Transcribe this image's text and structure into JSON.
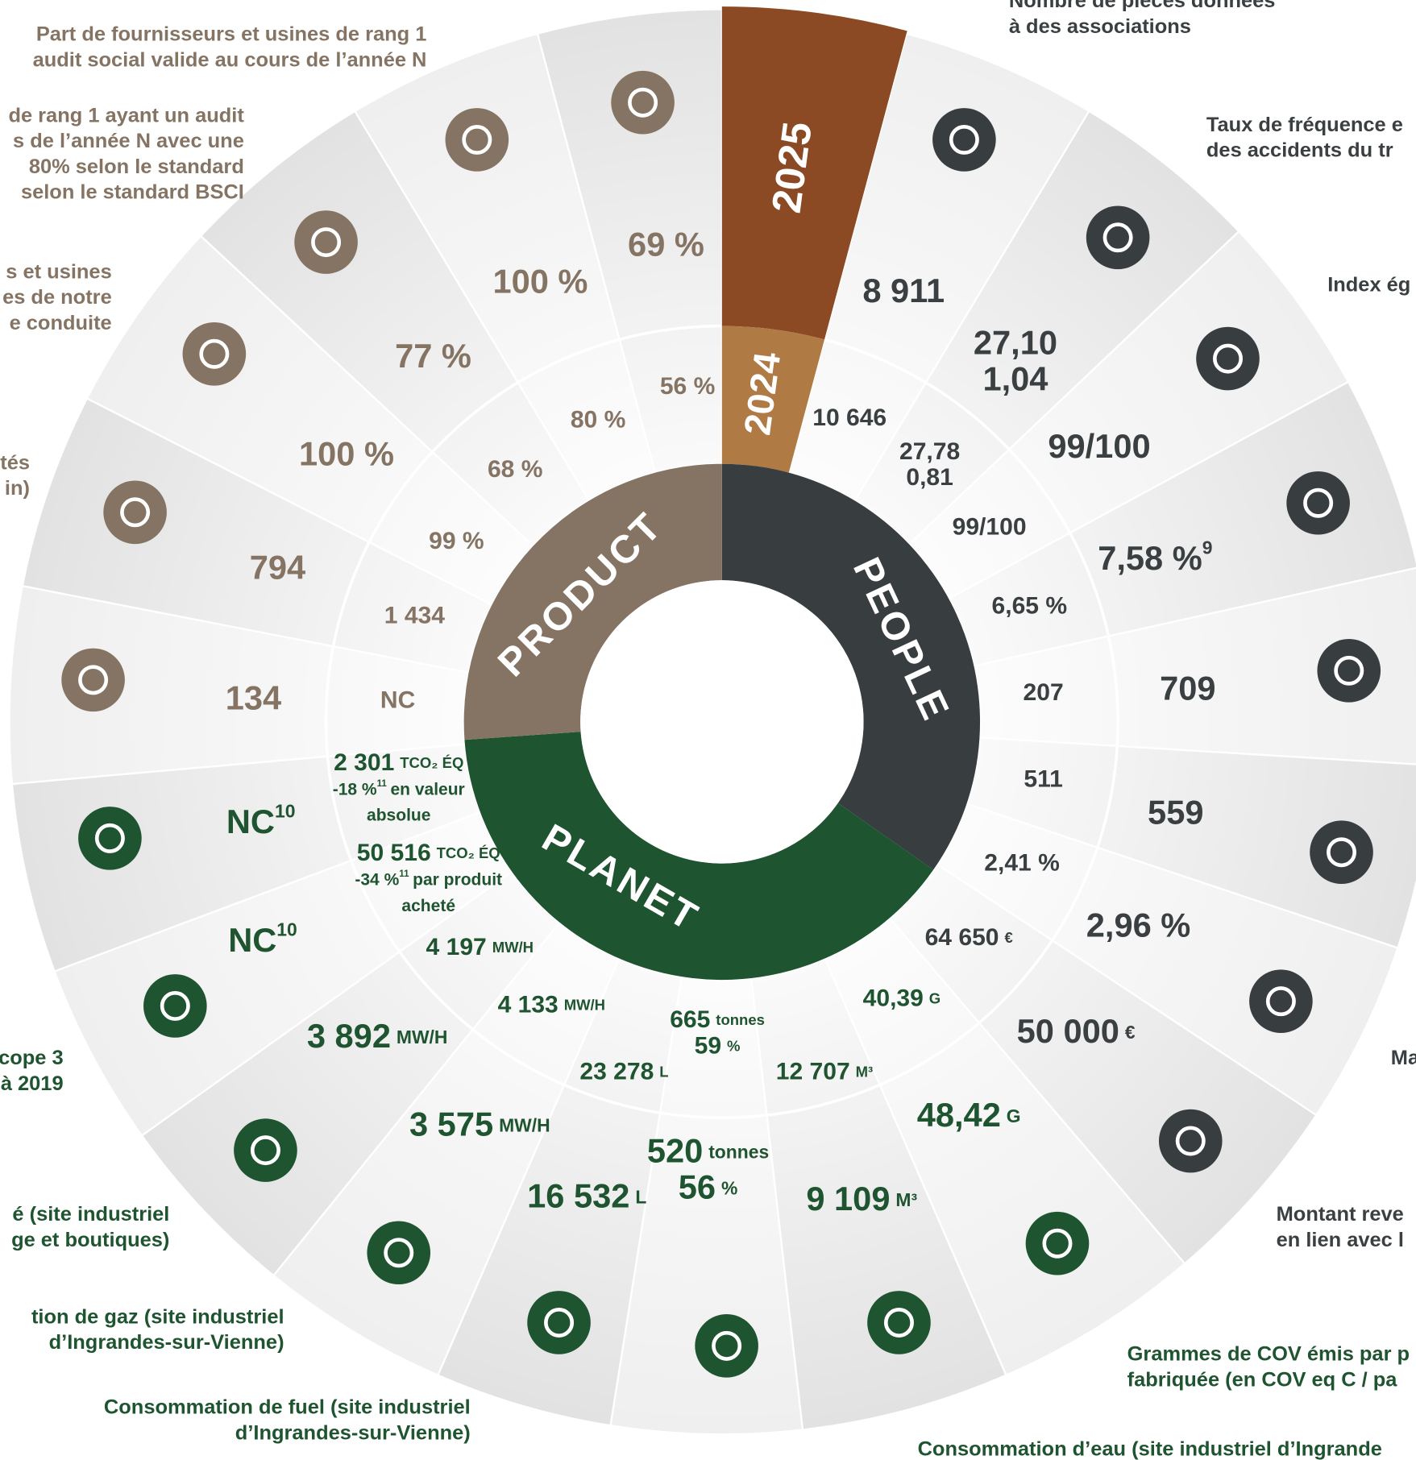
{
  "center": {
    "product": "PRODUCT",
    "people": "PEOPLE",
    "planet": "PLANET"
  },
  "years": {
    "current": "2025",
    "previous": "2024"
  },
  "groups": [
    {
      "name": "PEOPLE",
      "color": "#383d40",
      "segments": [
        {
          "label": [
            "Nombre de pièces données",
            "à des associations"
          ],
          "current": [
            {
              "t": "8 911"
            }
          ],
          "previous": [
            {
              "t": "10 646"
            }
          ]
        },
        {
          "label": [
            "Taux de fréquence e",
            "des accidents du tr"
          ],
          "current": [
            {
              "t": "27,10"
            },
            {
              "t": "1,04"
            }
          ],
          "previous": [
            {
              "t": "27,78"
            },
            {
              "t": "0,81"
            }
          ]
        },
        {
          "label": [
            "Index ég"
          ],
          "current": [
            {
              "t": "99/100"
            }
          ],
          "previous": [
            {
              "t": "99/100"
            }
          ]
        },
        {
          "current": [
            {
              "t": "7,58 %",
              "s": "9"
            }
          ],
          "previous": [
            {
              "t": "6,65 %"
            }
          ]
        },
        {
          "current": [
            {
              "t": "709"
            }
          ],
          "previous": [
            {
              "t": "207"
            }
          ]
        },
        {
          "current": [
            {
              "t": "559"
            }
          ],
          "previous": [
            {
              "t": "511"
            }
          ]
        },
        {
          "label": [
            "Ma"
          ],
          "current": [
            {
              "t": "2,96 %"
            }
          ],
          "previous": [
            {
              "t": "2,41 %"
            }
          ]
        },
        {
          "label": [
            "Montant reve",
            "en lien avec l"
          ],
          "current": [
            {
              "t": "50 000",
              "u": "€"
            }
          ],
          "previous": [
            {
              "t": "64 650",
              "u": "€"
            }
          ]
        }
      ]
    },
    {
      "name": "PLANET",
      "color": "#1f5430",
      "segments": [
        {
          "label": [
            "Grammes de COV émis par p",
            "fabriquée (en COV eq C / pa"
          ],
          "current": [
            {
              "t": "48,42",
              "u": "G"
            }
          ],
          "previous": [
            {
              "t": "40,39",
              "u": "G"
            }
          ]
        },
        {
          "label": [
            "Consommation d’eau (site industriel d’Ingrande"
          ],
          "current": [
            {
              "t": "9 109",
              "u": "M³"
            }
          ],
          "previous": [
            {
              "t": "12 707",
              "u": "M³"
            }
          ]
        },
        {
          "current": [
            {
              "t": "520",
              "u": "tonnes"
            },
            {
              "t": "56",
              "u": "%"
            }
          ],
          "previous": [
            {
              "t": "665",
              "u": "tonnes"
            },
            {
              "t": "59",
              "u": "%"
            }
          ]
        },
        {
          "label": [
            "Consommation de fuel (site industriel",
            "d’Ingrandes-sur-Vienne)"
          ],
          "current": [
            {
              "t": "16 532",
              "u": "L"
            }
          ],
          "previous": [
            {
              "t": "23 278",
              "u": "L"
            }
          ]
        },
        {
          "label": [
            "tion de gaz (site industriel",
            "d’Ingrandes-sur-Vienne)"
          ],
          "current": [
            {
              "t": "3 575",
              "u": "MW/H"
            }
          ],
          "previous": [
            {
              "t": "4 133",
              "u": "MW/H"
            }
          ]
        },
        {
          "label": [
            "é (site industriel",
            "ge et boutiques)"
          ],
          "current": [
            {
              "t": "3 892",
              "u": "MW/H"
            }
          ],
          "previous": [
            {
              "t": "4 197",
              "u": "MW/H"
            }
          ]
        },
        {
          "label": [
            "cope 3",
            "à 2019"
          ],
          "current": [
            {
              "t": "NC",
              "s": "10"
            }
          ],
          "previous": [
            {
              "t": "50 516",
              "u": "TCO₂ ÉQ"
            },
            {
              "t": "-34 %",
              "s": "11",
              "tail": "par produit"
            },
            {
              "t": "acheté"
            }
          ]
        },
        {
          "current": [
            {
              "t": "NC",
              "s": "10"
            }
          ],
          "previous": [
            {
              "t": "2 301",
              "u": "TCO₂ ÉQ"
            },
            {
              "t": "-18 %",
              "s": "11",
              "tail": "en valeur"
            },
            {
              "t": "absolue"
            }
          ]
        }
      ]
    },
    {
      "name": "PRODUCT",
      "color": "#857463",
      "segments": [
        {
          "current": [
            {
              "t": "134"
            }
          ],
          "previous": [
            {
              "t": "NC"
            }
          ]
        },
        {
          "label": [
            "tés",
            "in)"
          ],
          "current": [
            {
              "t": "794"
            }
          ],
          "previous": [
            {
              "t": "1 434"
            }
          ]
        },
        {
          "label": [
            "s et usines",
            "es de notre",
            "e conduite"
          ],
          "current": [
            {
              "t": "100 %"
            }
          ],
          "previous": [
            {
              "t": "99 %"
            }
          ]
        },
        {
          "label": [
            "de rang 1 ayant un audit",
            "s de l’année N avec une",
            "80% selon le standard",
            "selon le standard BSCI"
          ],
          "current": [
            {
              "t": "77 %"
            }
          ],
          "previous": [
            {
              "t": "68 %"
            }
          ]
        },
        {
          "label": [
            "Part de fournisseurs et usines de rang 1",
            "audit social valide au cours de l’année N"
          ],
          "current": [
            {
              "t": "100 %"
            }
          ],
          "previous": [
            {
              "t": "80 %"
            }
          ]
        },
        {
          "current": [
            {
              "t": "69 %"
            }
          ],
          "previous": [
            {
              "t": "56 %"
            }
          ]
        }
      ]
    }
  ]
}
